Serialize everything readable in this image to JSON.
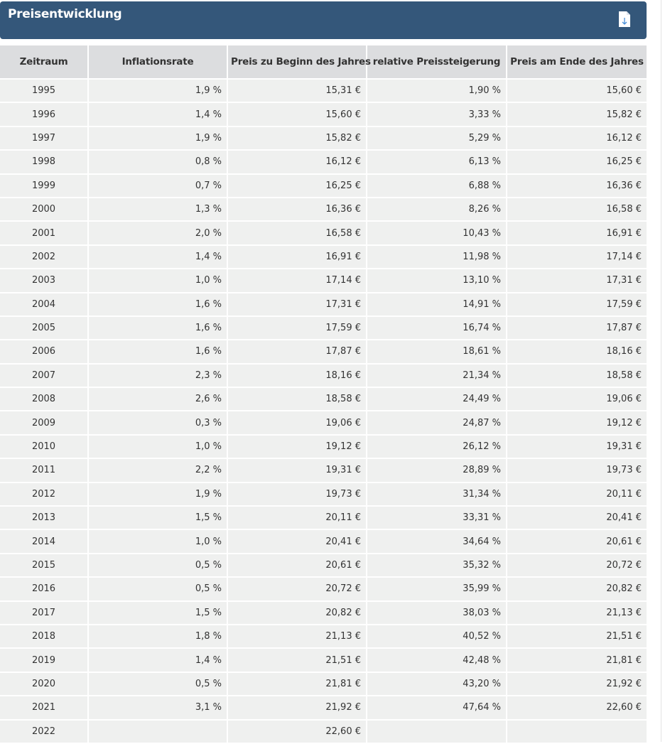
{
  "panel": {
    "title": "Preisentwicklung",
    "download_icon": "file-download-icon",
    "color": "#34577a"
  },
  "table": {
    "headers": [
      "Zeitraum",
      "Inflationsrate",
      "Preis zu Beginn des Jahres",
      "relative Preissteigerung",
      "Preis am Ende des Jahres"
    ],
    "rows": [
      [
        "1995",
        "1,9 %",
        "15,31 €",
        "1,90 %",
        "15,60 €"
      ],
      [
        "1996",
        "1,4 %",
        "15,60 €",
        "3,33 %",
        "15,82 €"
      ],
      [
        "1997",
        "1,9 %",
        "15,82 €",
        "5,29 %",
        "16,12 €"
      ],
      [
        "1998",
        "0,8 %",
        "16,12 €",
        "6,13 %",
        "16,25 €"
      ],
      [
        "1999",
        "0,7 %",
        "16,25 €",
        "6,88 %",
        "16,36 €"
      ],
      [
        "2000",
        "1,3 %",
        "16,36 €",
        "8,26 %",
        "16,58 €"
      ],
      [
        "2001",
        "2,0 %",
        "16,58 €",
        "10,43 %",
        "16,91 €"
      ],
      [
        "2002",
        "1,4 %",
        "16,91 €",
        "11,98 %",
        "17,14 €"
      ],
      [
        "2003",
        "1,0 %",
        "17,14 €",
        "13,10 %",
        "17,31 €"
      ],
      [
        "2004",
        "1,6 %",
        "17,31 €",
        "14,91 %",
        "17,59 €"
      ],
      [
        "2005",
        "1,6 %",
        "17,59 €",
        "16,74 %",
        "17,87 €"
      ],
      [
        "2006",
        "1,6 %",
        "17,87 €",
        "18,61 %",
        "18,16 €"
      ],
      [
        "2007",
        "2,3 %",
        "18,16 €",
        "21,34 %",
        "18,58 €"
      ],
      [
        "2008",
        "2,6 %",
        "18,58 €",
        "24,49 %",
        "19,06 €"
      ],
      [
        "2009",
        "0,3 %",
        "19,06 €",
        "24,87 %",
        "19,12 €"
      ],
      [
        "2010",
        "1,0 %",
        "19,12 €",
        "26,12 %",
        "19,31 €"
      ],
      [
        "2011",
        "2,2 %",
        "19,31 €",
        "28,89 %",
        "19,73 €"
      ],
      [
        "2012",
        "1,9 %",
        "19,73 €",
        "31,34 %",
        "20,11 €"
      ],
      [
        "2013",
        "1,5 %",
        "20,11 €",
        "33,31 %",
        "20,41 €"
      ],
      [
        "2014",
        "1,0 %",
        "20,41 €",
        "34,64 %",
        "20,61 €"
      ],
      [
        "2015",
        "0,5 %",
        "20,61 €",
        "35,32 %",
        "20,72 €"
      ],
      [
        "2016",
        "0,5 %",
        "20,72 €",
        "35,99 %",
        "20,82 €"
      ],
      [
        "2017",
        "1,5 %",
        "20,82 €",
        "38,03 %",
        "21,13 €"
      ],
      [
        "2018",
        "1,8 %",
        "21,13 €",
        "40,52 %",
        "21,51 €"
      ],
      [
        "2019",
        "1,4 %",
        "21,51 €",
        "42,48 %",
        "21,81 €"
      ],
      [
        "2020",
        "0,5 %",
        "21,81 €",
        "43,20 %",
        "21,92 €"
      ],
      [
        "2021",
        "3,1 %",
        "21,92 €",
        "47,64 %",
        "22,60 €"
      ],
      [
        "2022",
        "",
        "22,60 €",
        "",
        ""
      ]
    ]
  }
}
